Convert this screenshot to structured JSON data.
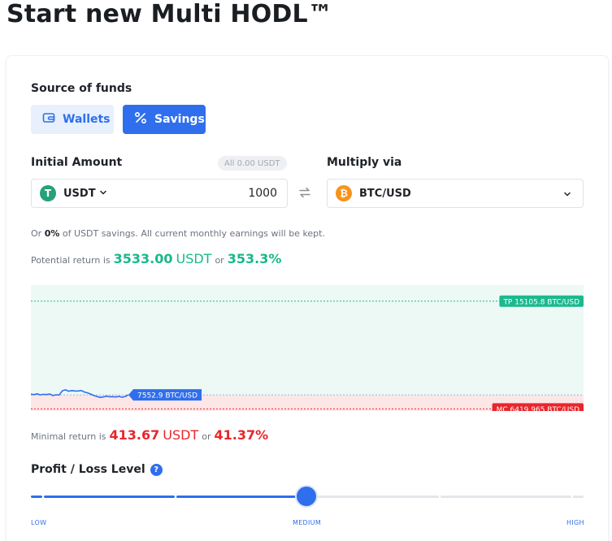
{
  "page": {
    "title": "Start new Multi HODL™"
  },
  "source": {
    "label": "Source of funds",
    "wallets_label": "Wallets",
    "savings_label": "Savings"
  },
  "amount": {
    "label": "Initial Amount",
    "all_badge": "All 0.00 USDT",
    "currency": "USDT",
    "value": "1000",
    "currency_icon": "tether-icon"
  },
  "multiply": {
    "label": "Multiply via",
    "pair": "BTC/USD",
    "pair_icon": "bitcoin-icon"
  },
  "savings_note": {
    "prefix": "Or",
    "percent": "0%",
    "suffix": "of USDT savings. All current monthly earnings will be kept."
  },
  "potential": {
    "prefix": "Potential return is",
    "amount": "3533.00",
    "unit": "USDT",
    "or": "or",
    "percent": "353.3%"
  },
  "chart": {
    "tp_label": "TP 15105.8 BTC/USD",
    "price_label": "7552.9 BTC/USD",
    "mc_label": "MC 6419.965 BTC/USD",
    "profit_color": "#ecf9f5",
    "loss_color": "#fde6e6",
    "tp_color": "#1bb98e",
    "mc_color": "#e8262b",
    "line_color": "#2f6fed"
  },
  "chart_data": {
    "type": "line",
    "series": [
      {
        "values": [
          7610,
          7570,
          7640,
          7550,
          7600,
          7580,
          7620,
          7500,
          7560,
          7540,
          7880,
          7960,
          7850,
          7900,
          7870,
          7860,
          7910,
          7780,
          7720,
          7620,
          7500,
          7420,
          7350,
          7380,
          7450,
          7400,
          7410,
          7380,
          7430,
          7360,
          7420,
          7552.9
        ]
      }
    ],
    "ylim": [
      6250,
      16400
    ]
  },
  "minimal": {
    "prefix": "Minimal return is",
    "amount": "413.67",
    "unit": "USDT",
    "or": "or",
    "percent": "41.37%"
  },
  "risk": {
    "label": "Profit / Loss Level",
    "help": "?",
    "level": 0.5,
    "ticks": {
      "low": "LOW",
      "medium": "MEDIUM",
      "high": "HIGH"
    }
  }
}
